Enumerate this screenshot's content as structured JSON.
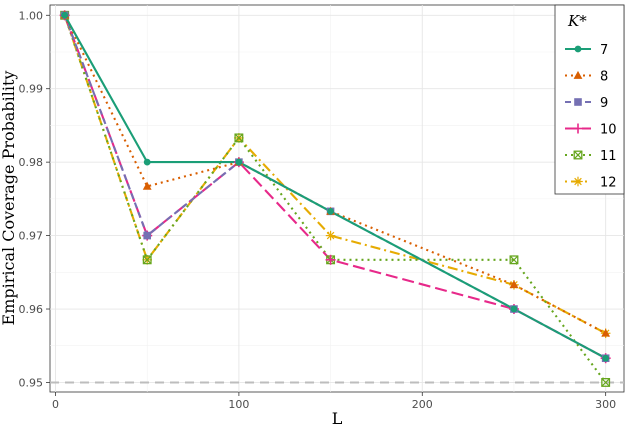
{
  "chart_data": {
    "type": "line",
    "title": "",
    "xlabel": "L",
    "ylabel": "Empirical Coverage Probability",
    "xlim": [
      -3,
      310
    ],
    "ylim": [
      0.9487,
      1.0014
    ],
    "x_ticks": [
      0,
      100,
      200,
      300
    ],
    "y_ticks": [
      0.95,
      0.96,
      0.97,
      0.98,
      0.99,
      1.0
    ],
    "y_tick_labels": [
      "0.95",
      "0.96",
      "0.97",
      "0.98",
      "0.99",
      "1.00"
    ],
    "grid": true,
    "legend_title": "K*",
    "legend_position": "top-right",
    "reference_line": {
      "y": 0.95,
      "style": "dashed",
      "color": "#bdbdbd"
    },
    "series": [
      {
        "name": "7",
        "color": "#1b9e77",
        "dash": "solid",
        "marker": "circle",
        "x": [
          5,
          50,
          100,
          150,
          250,
          300
        ],
        "y": [
          1.0,
          0.98,
          0.98,
          0.9733,
          0.96,
          0.9533
        ]
      },
      {
        "name": "8",
        "color": "#d95f02",
        "dash": "dotted",
        "marker": "triangle",
        "x": [
          5,
          50,
          100,
          150,
          250,
          300
        ],
        "y": [
          1.0,
          0.9767,
          0.98,
          0.9733,
          0.9633,
          0.9567
        ]
      },
      {
        "name": "9",
        "color": "#7570b3",
        "dash": "dashed",
        "marker": "square",
        "x": [
          5,
          50,
          100,
          150,
          250,
          300
        ],
        "y": [
          1.0,
          0.97,
          0.98,
          0.9733,
          0.96,
          0.9533
        ]
      },
      {
        "name": "10",
        "color": "#e7298a",
        "dash": "longdash",
        "marker": "plus",
        "x": [
          5,
          50,
          100,
          150,
          250,
          300
        ],
        "y": [
          1.0,
          0.97,
          0.98,
          0.9667,
          0.96,
          0.9533
        ]
      },
      {
        "name": "11",
        "color": "#66a61e",
        "dash": "dotted",
        "marker": "square-x",
        "x": [
          5,
          50,
          100,
          150,
          250,
          300
        ],
        "y": [
          1.0,
          0.9667,
          0.9833,
          0.9667,
          0.9667,
          0.95
        ]
      },
      {
        "name": "12",
        "color": "#e6ab02",
        "dash": "dotdash",
        "marker": "asterisk",
        "x": [
          5,
          50,
          100,
          150,
          250,
          300
        ],
        "y": [
          1.0,
          0.9667,
          0.9833,
          0.97,
          0.9633,
          0.9567
        ]
      }
    ]
  }
}
